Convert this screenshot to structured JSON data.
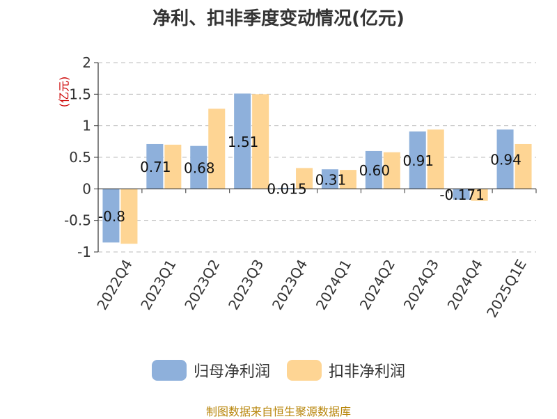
{
  "colors": {
    "series1": "#8eb0db",
    "series2": "#fed594",
    "axis": "#333333",
    "grid": "#bbbbbb",
    "ylabel": "#cc0000",
    "source": "#b8860b"
  },
  "chart_data": {
    "type": "bar",
    "title": "净利、扣非季度变动情况(亿元)",
    "xlabel": "",
    "ylabel": "(亿元)",
    "ylim": [
      -1,
      2
    ],
    "yticks": [
      {
        "value": 2,
        "label": "2"
      },
      {
        "value": 1.5,
        "label": "1.5"
      },
      {
        "value": 1,
        "label": "1"
      },
      {
        "value": 0.5,
        "label": "0.5"
      },
      {
        "value": 0,
        "label": "0"
      },
      {
        "value": -0.5,
        "label": "-0.5"
      },
      {
        "value": -1,
        "label": "-1"
      }
    ],
    "grid": true,
    "legend": "bottom",
    "categories": [
      "2022Q4",
      "2023Q1",
      "2023Q2",
      "2023Q3",
      "2023Q4",
      "2024Q1",
      "2024Q2",
      "2024Q3",
      "2024Q4",
      "2025Q1E"
    ],
    "series": [
      {
        "name": "归母净利润",
        "values": [
          -0.85,
          0.71,
          0.68,
          1.51,
          0.015,
          0.31,
          0.6,
          0.91,
          -0.171,
          0.94
        ],
        "labels": [
          "-0.8",
          "0.71",
          "0.68",
          "1.51",
          "0.015",
          "0.31",
          "0.60",
          "0.91",
          "-0.171",
          "0.94"
        ]
      },
      {
        "name": "扣非净利润",
        "values": [
          -0.87,
          0.7,
          1.27,
          1.5,
          0.33,
          0.3,
          0.58,
          0.94,
          -0.19,
          0.71
        ]
      }
    ]
  },
  "footer": {
    "source": "制图数据来自恒生聚源数据库"
  }
}
